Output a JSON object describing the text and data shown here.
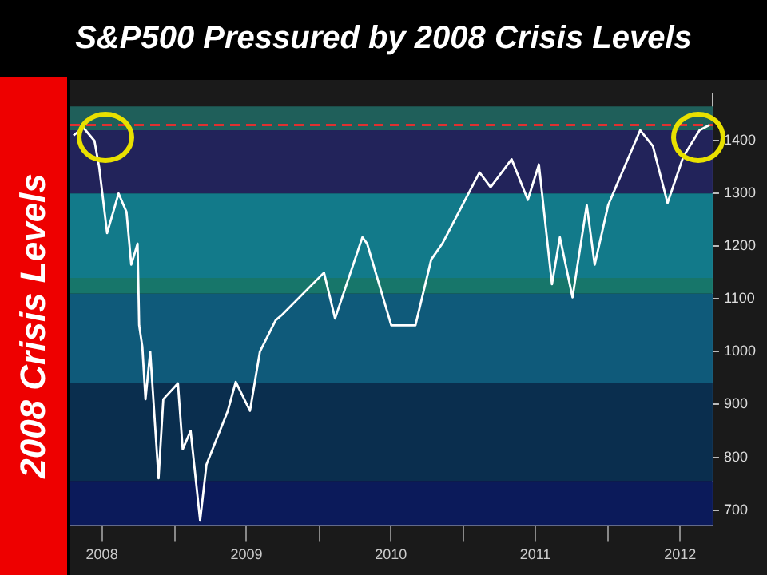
{
  "chart_data": {
    "type": "line",
    "title": "S&P500 Pressured by 2008 Crisis Levels",
    "annotations": [
      "2008 Crisis Levels"
    ],
    "x": [
      "2008-04-20",
      "2008-05-15",
      "2008-06-12",
      "2008-06-24",
      "2008-07-14",
      "2008-08-12",
      "2008-09-01",
      "2008-09-13",
      "2008-09-29",
      "2008-10-03",
      "2008-10-11",
      "2008-10-19",
      "2008-10-31",
      "2008-11-21",
      "2008-12-03",
      "2009-01-09",
      "2009-01-21",
      "2009-02-10",
      "2009-03-06",
      "2009-03-22",
      "2009-05-15",
      "2009-06-04",
      "2009-07-10",
      "2009-08-04",
      "2009-09-13",
      "2009-09-29",
      "2010-01-13",
      "2010-02-10",
      "2010-04-20",
      "2010-05-02",
      "2010-07-02",
      "2010-09-01",
      "2010-10-11",
      "2010-11-08",
      "2011-02-10",
      "2011-03-10",
      "2011-05-02",
      "2011-06-12",
      "2011-07-10",
      "2011-08-12",
      "2011-09-01",
      "2011-10-03",
      "2011-11-08",
      "2011-11-28",
      "2012-01-01",
      "2012-03-22",
      "2012-04-23",
      "2012-05-30",
      "2012-07-09",
      "2012-08-19",
      "2012-09-13"
    ],
    "series": [
      {
        "color": "#ffffff",
        "values": [
          1410,
          1425,
          1400,
          1350,
          1225,
          1300,
          1265,
          1165,
          1205,
          1050,
          1010,
          910,
          1000,
          760,
          910,
          940,
          815,
          850,
          680,
          786,
          888,
          943,
          888,
          1000,
          1060,
          1070,
          1150,
          1063,
          1217,
          1205,
          1050,
          1050,
          1175,
          1205,
          1340,
          1312,
          1365,
          1288,
          1355,
          1128,
          1217,
          1103,
          1278,
          1165,
          1278,
          1420,
          1390,
          1282,
          1370,
          1420,
          1430
        ]
      }
    ],
    "xlim": [
      "2008-04-12",
      "2012-09-21"
    ],
    "xticks": [
      {
        "value": "2008-07-01",
        "label": "2008"
      },
      {
        "value": "2009-01-01",
        "label": null
      },
      {
        "value": "2009-07-01",
        "label": "2009"
      },
      {
        "value": "2010-01-01",
        "label": null
      },
      {
        "value": "2010-07-01",
        "label": "2010"
      },
      {
        "value": "2011-01-01",
        "label": null
      },
      {
        "value": "2011-07-01",
        "label": "2011"
      },
      {
        "value": "2012-01-01",
        "label": null
      },
      {
        "value": "2012-07-01",
        "label": "2012"
      }
    ],
    "ylim": [
      670,
      1490
    ],
    "yticks": [
      700,
      800,
      900,
      1000,
      1100,
      1200,
      1300,
      1400
    ],
    "bands": [
      {
        "axis": "y",
        "from": 1420,
        "to": 1465,
        "color": "#1f5f5a"
      },
      {
        "axis": "y",
        "from": 1300,
        "to": 1420,
        "color": "#22235a"
      },
      {
        "axis": "y",
        "from": 1140,
        "to": 1300,
        "color": "#127a8a"
      },
      {
        "axis": "y",
        "from": 1110,
        "to": 1140,
        "color": "#17766a"
      },
      {
        "axis": "y",
        "from": 940,
        "to": 1110,
        "color": "#0f5a7a"
      },
      {
        "axis": "y",
        "from": 755,
        "to": 940,
        "color": "#0a2e4e"
      },
      {
        "axis": "y",
        "from": 670,
        "to": 755,
        "color": "#0b1a5a"
      }
    ],
    "ref_lines": [
      {
        "axis": "y",
        "value": 1430,
        "color": "#e03030",
        "line_style": "dashed"
      }
    ],
    "grid": false,
    "legend": false,
    "marker": "none",
    "line_style": "solid"
  }
}
